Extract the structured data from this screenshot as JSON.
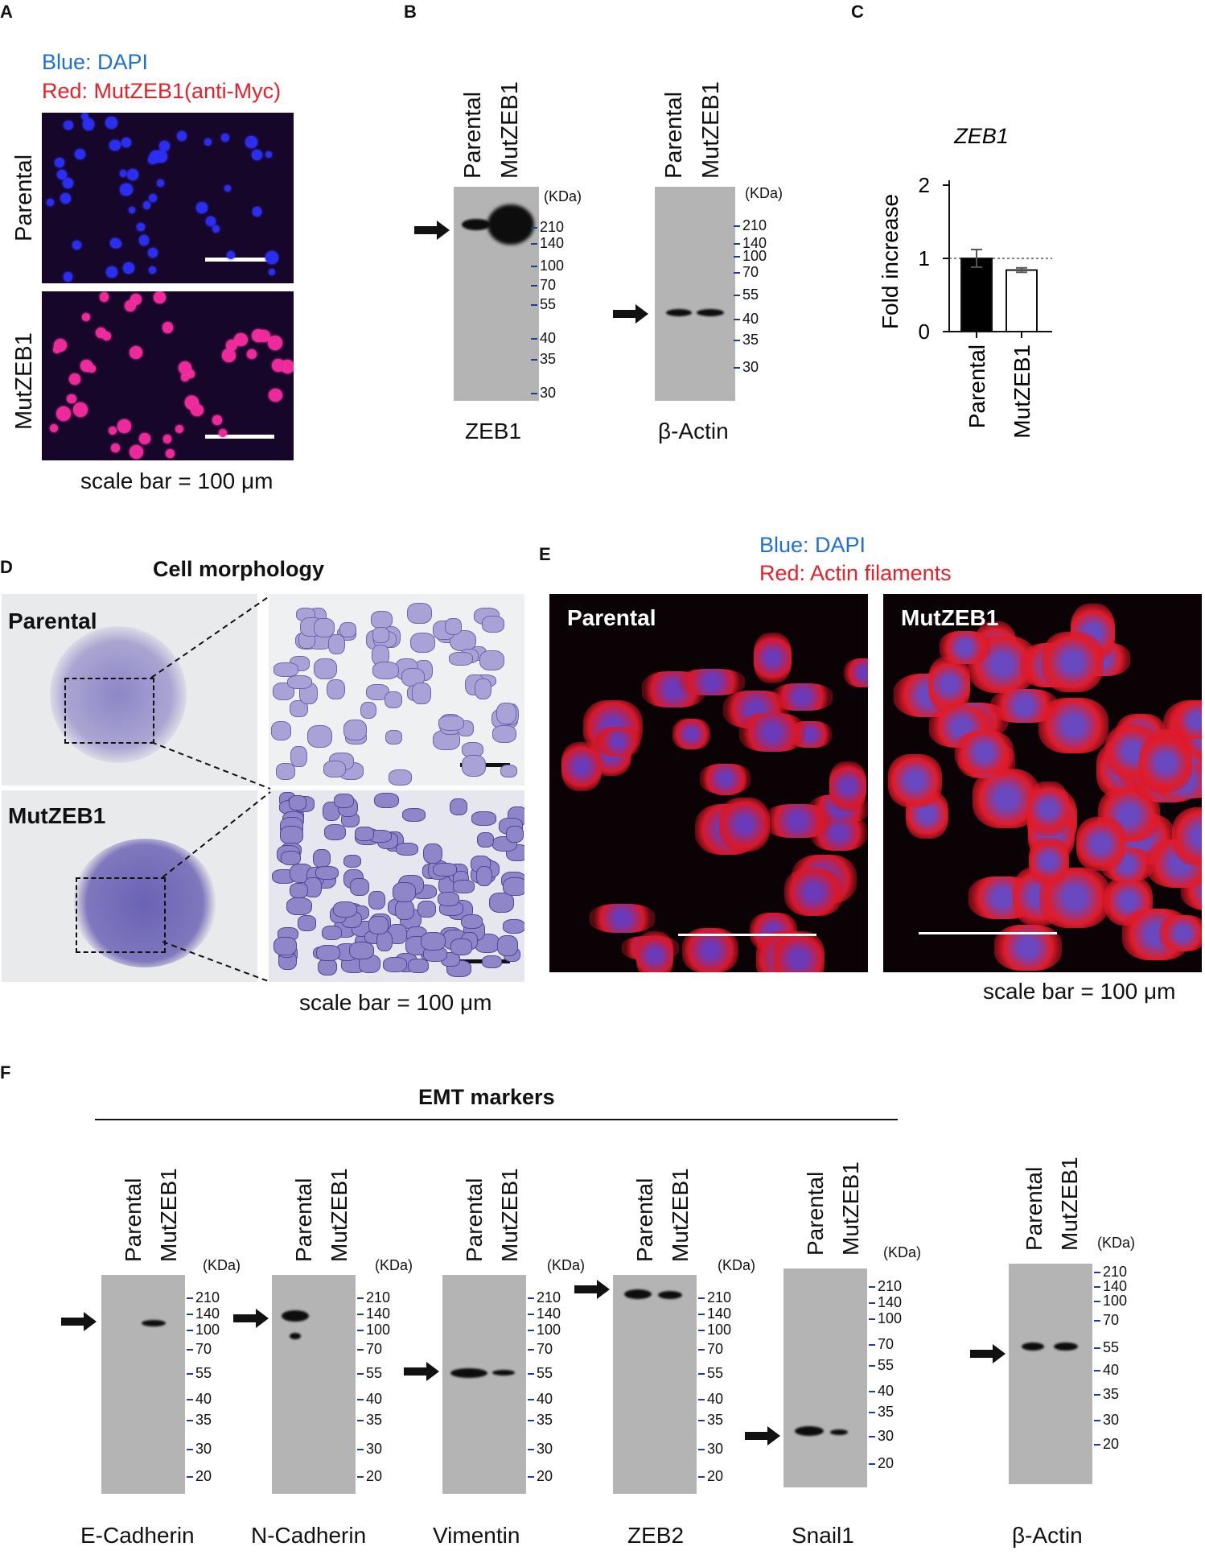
{
  "panels": {
    "A": "A",
    "B": "B",
    "C": "C",
    "D": "D",
    "E": "E",
    "F": "F"
  },
  "panel_a": {
    "legend_blue": "Blue: DAPI",
    "legend_red": "Red: MutZEB1(anti-Myc)",
    "row_top": "Parental",
    "row_bottom": "MutZEB1",
    "scale": "scale bar = 100 μm",
    "colors": {
      "blue": "#1f6fd8",
      "red": "#e8202a"
    }
  },
  "panel_b": {
    "kda": "(KDa)",
    "lanes": [
      "Parental",
      "MutZEB1"
    ],
    "blot1": {
      "name": "ZEB1",
      "ticks": [
        "210",
        "140",
        "100",
        "70",
        "55",
        "40",
        "35",
        "30"
      ]
    },
    "blot2": {
      "name": "β-Actin",
      "ticks": [
        "210",
        "140",
        "100",
        "70",
        "55",
        "40",
        "35",
        "30"
      ]
    }
  },
  "panel_c": {
    "chart_data": {
      "type": "bar",
      "title": "ZEB1",
      "ylabel": "Fold increase",
      "categories": [
        "Parental",
        "MutZEB1"
      ],
      "values": [
        1.0,
        0.84
      ],
      "errors": [
        0.12,
        0.03
      ],
      "ylim": [
        0,
        2
      ],
      "yticks": [
        "0",
        "1",
        "2"
      ],
      "reference_line": 1,
      "bar_colors": [
        "#000000",
        "#ffffff"
      ]
    }
  },
  "panel_d": {
    "title": "Cell morphology",
    "row_top": "Parental",
    "row_bottom": "MutZEB1",
    "scale": "scale bar = 100 μm"
  },
  "panel_e": {
    "legend_blue": "Blue: DAPI",
    "legend_red": "Red: Actin filaments",
    "left_label": "Parental",
    "right_label": "MutZEB1",
    "scale": "scale bar = 100 μm"
  },
  "panel_f": {
    "title": "EMT markers",
    "kda": "(KDa)",
    "lanes": [
      "Parental",
      "MutZEB1"
    ],
    "blots": [
      {
        "name": "E-Cadherin",
        "ticks": [
          "210",
          "140",
          "100",
          "70",
          "55",
          "40",
          "35",
          "30",
          "20"
        ]
      },
      {
        "name": "N-Cadherin",
        "ticks": [
          "210",
          "140",
          "100",
          "70",
          "55",
          "40",
          "35",
          "30",
          "20"
        ]
      },
      {
        "name": "Vimentin",
        "ticks": [
          "210",
          "140",
          "100",
          "70",
          "55",
          "40",
          "35",
          "30",
          "20"
        ]
      },
      {
        "name": "ZEB2",
        "ticks": [
          "210",
          "140",
          "100",
          "70",
          "55",
          "40",
          "35",
          "30",
          "20"
        ]
      },
      {
        "name": "Snail1",
        "ticks": [
          "210",
          "140",
          "100",
          "70",
          "55",
          "40",
          "35",
          "30",
          "20"
        ]
      },
      {
        "name": "β-Actin",
        "ticks": [
          "210",
          "140",
          "100",
          "70",
          "55",
          "40",
          "35",
          "30",
          "20"
        ]
      }
    ]
  }
}
